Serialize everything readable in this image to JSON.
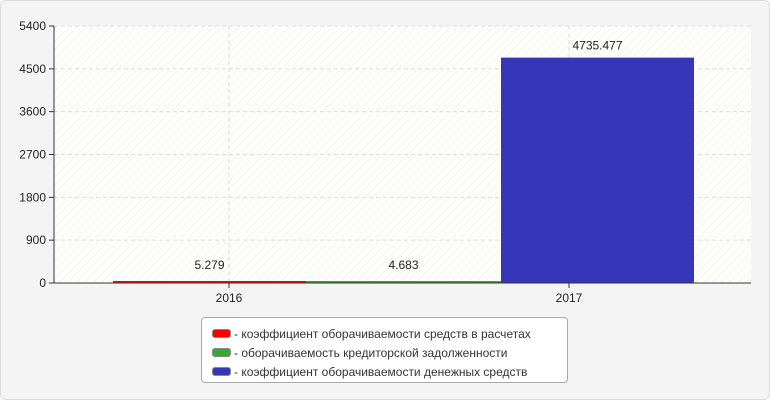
{
  "chart_data": {
    "type": "bar",
    "categories": [
      "2016",
      "2017"
    ],
    "ylim": [
      0,
      5400
    ],
    "yticks": [
      0,
      900,
      1800,
      2700,
      3600,
      4500,
      5400
    ],
    "grid": true,
    "legend_position": "bottom",
    "series": [
      {
        "name": "- коэффициент оборачиваемости средств в расчетах",
        "value": 5.279,
        "label": "5.279",
        "color": "#ff0000"
      },
      {
        "name": "- оборачиваемость кредиторской задолженности",
        "value": 4.683,
        "label": "4.683",
        "color": "#33aa33"
      },
      {
        "name": "- коэффициент оборачиваемости денежных средств",
        "value": 4735.477,
        "label": "4735.477",
        "color": "#3636b8"
      }
    ]
  }
}
